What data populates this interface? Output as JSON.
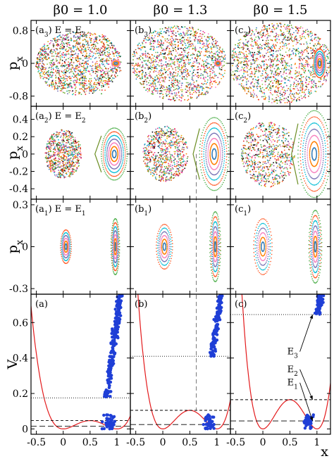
{
  "figure": {
    "column_titles": [
      "β0 = 1.0",
      "β0 = 1.3",
      "β0 = 1.5"
    ],
    "row_ylabels": [
      "px",
      "px",
      "px",
      "V"
    ],
    "bottom_xlabel": "x",
    "energy_labels": [
      "E3",
      "E2",
      "E1"
    ]
  },
  "chart_data": [
    {
      "type": "scatter",
      "panel": "a3",
      "label": "(a3) E = E3",
      "ylabel": "px",
      "yticks": [
        "0.8",
        "0",
        "-0.8"
      ],
      "ylim": [
        -1.05,
        1.05
      ],
      "xlim": [
        -0.6,
        1.25
      ]
    },
    {
      "type": "scatter",
      "panel": "b3",
      "label": "(b3)",
      "ylim": [
        -1.05,
        1.05
      ],
      "xlim": [
        -0.6,
        1.25
      ]
    },
    {
      "type": "scatter",
      "panel": "c3",
      "label": "(c3)",
      "ylim": [
        -1.05,
        1.05
      ],
      "xlim": [
        -0.6,
        1.25
      ]
    },
    {
      "type": "scatter",
      "panel": "a2",
      "label": "(a2) E = E2",
      "ylabel": "px",
      "yticks": [
        "0.4",
        "0.2",
        "0",
        "-0.2",
        "-0.4"
      ],
      "ylim": [
        -0.52,
        0.55
      ],
      "xlim": [
        -0.6,
        1.25
      ]
    },
    {
      "type": "scatter",
      "panel": "b2",
      "label": "(b2)",
      "ylim": [
        -0.52,
        0.55
      ],
      "xlim": [
        -0.6,
        1.25
      ]
    },
    {
      "type": "scatter",
      "panel": "c2",
      "label": "(c2)",
      "ylim": [
        -0.52,
        0.55
      ],
      "xlim": [
        -0.6,
        1.25
      ]
    },
    {
      "type": "scatter",
      "panel": "a1",
      "label": "(a1) E = E1",
      "ylabel": "px",
      "yticks": [
        "0.3",
        "0",
        "-0.3"
      ],
      "ylim": [
        -0.34,
        0.34
      ],
      "xlim": [
        -0.6,
        1.25
      ]
    },
    {
      "type": "scatter",
      "panel": "b1",
      "label": "(b1)",
      "ylim": [
        -0.34,
        0.34
      ],
      "xlim": [
        -0.6,
        1.25
      ]
    },
    {
      "type": "scatter",
      "panel": "c1",
      "label": "(c1)",
      "ylim": [
        -0.34,
        0.34
      ],
      "xlim": [
        -0.6,
        1.25
      ]
    },
    {
      "type": "line",
      "panel": "a",
      "label": "(a)",
      "ylabel": "V",
      "xlabel": "",
      "yticks": [
        "0",
        "0.2",
        "0.4",
        "0.6"
      ],
      "xticks": [
        "-0.5",
        "0",
        "0.5",
        "1"
      ],
      "ylim": [
        -0.03,
        0.76
      ],
      "xlim": [
        -0.6,
        1.25
      ],
      "beta0": 1.0,
      "energy_levels": [
        0.015,
        0.047,
        0.175
      ]
    },
    {
      "type": "line",
      "panel": "b",
      "label": "(b)",
      "xticks": [
        "-0.5",
        "0",
        "0.5",
        "1"
      ],
      "ylim": [
        -0.03,
        0.76
      ],
      "xlim": [
        -0.6,
        1.25
      ],
      "beta0": 1.3,
      "energy_levels": [
        0.025,
        0.105,
        0.41
      ]
    },
    {
      "type": "line",
      "panel": "c",
      "label": "(c)",
      "xlabel": "x",
      "xticks": [
        "-0.5",
        "0",
        "0.5",
        "1"
      ],
      "ylim": [
        -0.03,
        0.76
      ],
      "xlim": [
        -0.6,
        1.25
      ],
      "beta0": 1.5,
      "energy_levels": [
        0.045,
        0.165,
        0.645
      ]
    }
  ]
}
